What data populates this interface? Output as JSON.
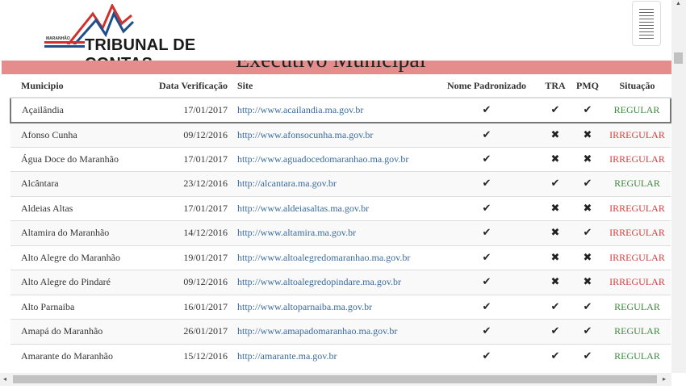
{
  "header": {
    "logo_text": "TRIBUNAL DE CONTAS",
    "logo_state": "MARANHÃO",
    "colors": {
      "red": "#d0312d",
      "blue": "#1f4e8c"
    }
  },
  "title": "Executivo Municipal",
  "band_color": "#e58d8d",
  "columns": [
    "Municipio",
    "Data Verificação",
    "Site",
    "Nome Padronizado",
    "TRA",
    "PMQ",
    "Situação"
  ],
  "rows": [
    {
      "municipio": "Açailândia",
      "data": "17/01/2017",
      "site": "http://www.acailandia.ma.gov.br",
      "nome": "✔",
      "tra": "✔",
      "pmq": "✔",
      "situacao": "REGULAR"
    },
    {
      "municipio": "Afonso Cunha",
      "data": "09/12/2016",
      "site": "http://www.afonsocunha.ma.gov.br",
      "nome": "✔",
      "tra": "✖",
      "pmq": "✖",
      "situacao": "IRREGULAR"
    },
    {
      "municipio": "Água Doce do Maranhão",
      "data": "17/01/2017",
      "site": "http://www.aguadocedomaranhao.ma.gov.br",
      "nome": "✔",
      "tra": "✖",
      "pmq": "✖",
      "situacao": "IRREGULAR"
    },
    {
      "municipio": "Alcântara",
      "data": "23/12/2016",
      "site": "http://alcantara.ma.gov.br",
      "nome": "✔",
      "tra": "✔",
      "pmq": "✔",
      "situacao": "REGULAR"
    },
    {
      "municipio": "Aldeias Altas",
      "data": "17/01/2017",
      "site": "http://www.aldeiasaltas.ma.gov.br",
      "nome": "✔",
      "tra": "✖",
      "pmq": "✖",
      "situacao": "IRREGULAR"
    },
    {
      "municipio": "Altamira do Maranhão",
      "data": "14/12/2016",
      "site": "http://www.altamira.ma.gov.br",
      "nome": "✔",
      "tra": "✖",
      "pmq": "✔",
      "situacao": "IRREGULAR"
    },
    {
      "municipio": "Alto Alegre do Maranhão",
      "data": "19/01/2017",
      "site": "http://www.altoalegredomaranhao.ma.gov.br",
      "nome": "✔",
      "tra": "✖",
      "pmq": "✖",
      "situacao": "IRREGULAR"
    },
    {
      "municipio": "Alto Alegre do Pindaré",
      "data": "09/12/2016",
      "site": "http://www.altoalegredopindare.ma.gov.br",
      "nome": "✔",
      "tra": "✖",
      "pmq": "✖",
      "situacao": "IRREGULAR"
    },
    {
      "municipio": "Alto Parnaiba",
      "data": "16/01/2017",
      "site": "http://www.altoparnaiba.ma.gov.br",
      "nome": "✔",
      "tra": "✔",
      "pmq": "✔",
      "situacao": "REGULAR"
    },
    {
      "municipio": "Amapá do Maranhão",
      "data": "26/01/2017",
      "site": "http://www.amapadomaranhao.ma.gov.br",
      "nome": "✔",
      "tra": "✔",
      "pmq": "✔",
      "situacao": "REGULAR"
    },
    {
      "municipio": "Amarante do Maranhão",
      "data": "15/12/2016",
      "site": "http://amarante.ma.gov.br",
      "nome": "✔",
      "tra": "✔",
      "pmq": "✔",
      "situacao": "REGULAR"
    }
  ]
}
